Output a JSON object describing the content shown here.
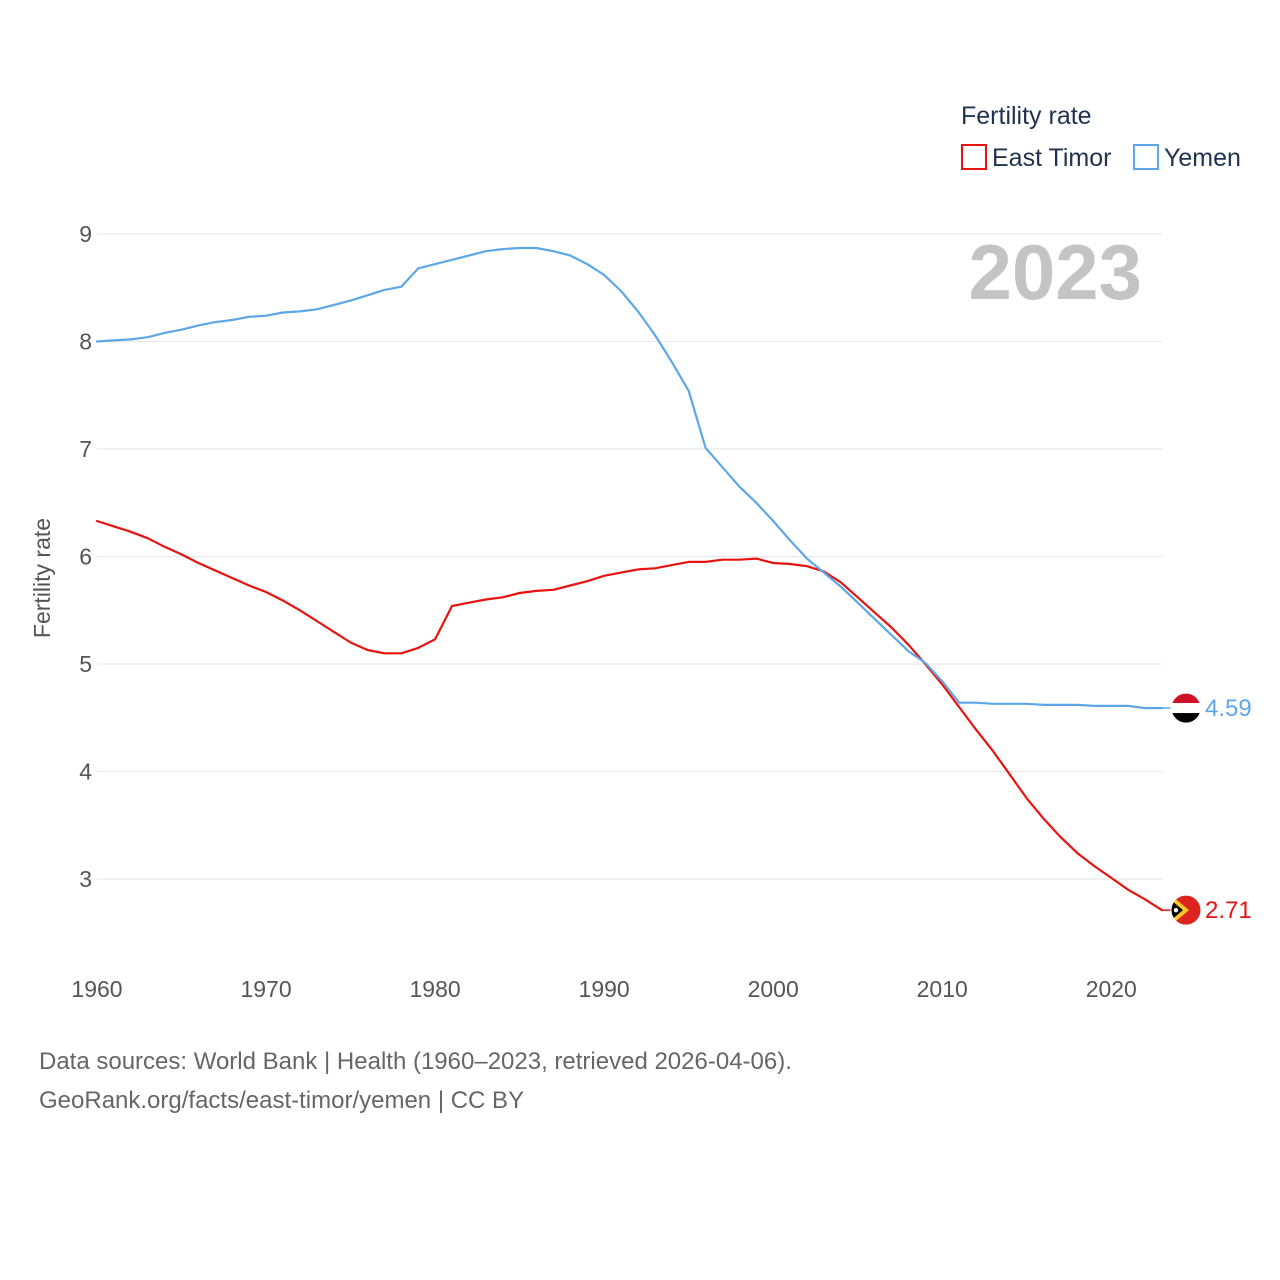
{
  "chart_data": {
    "type": "line",
    "ylabel": "Fertility rate",
    "xlabel": "",
    "xlim": [
      1960,
      2023
    ],
    "ylim": [
      2.4,
      9.2
    ],
    "x_ticks": [
      1960,
      1970,
      1980,
      1990,
      2000,
      2010,
      2020
    ],
    "y_ticks": [
      3,
      4,
      5,
      6,
      7,
      8,
      9
    ],
    "grid": true,
    "legend": {
      "title": "Fertility rate",
      "placement": "top-right",
      "entries": [
        "East Timor",
        "Yemen"
      ]
    },
    "year_display": "2023",
    "series": [
      {
        "name": "East Timor",
        "color": "#e8130f",
        "end_label": "2.71",
        "flag": "east-timor-flag",
        "x": [
          1960,
          1961,
          1962,
          1963,
          1964,
          1965,
          1966,
          1967,
          1968,
          1969,
          1970,
          1971,
          1972,
          1973,
          1974,
          1975,
          1976,
          1977,
          1978,
          1979,
          1980,
          1981,
          1982,
          1983,
          1984,
          1985,
          1986,
          1987,
          1988,
          1989,
          1990,
          1991,
          1992,
          1993,
          1994,
          1995,
          1996,
          1997,
          1998,
          1999,
          2000,
          2001,
          2002,
          2003,
          2004,
          2005,
          2006,
          2007,
          2008,
          2009,
          2010,
          2011,
          2012,
          2013,
          2014,
          2015,
          2016,
          2017,
          2018,
          2019,
          2020,
          2021,
          2022,
          2023
        ],
        "values": [
          6.33,
          6.28,
          6.23,
          6.17,
          6.09,
          6.02,
          5.94,
          5.87,
          5.8,
          5.73,
          5.67,
          5.59,
          5.5,
          5.4,
          5.3,
          5.2,
          5.13,
          5.1,
          5.1,
          5.15,
          5.23,
          5.54,
          5.57,
          5.6,
          5.62,
          5.66,
          5.68,
          5.69,
          5.73,
          5.77,
          5.82,
          5.85,
          5.88,
          5.89,
          5.92,
          5.95,
          5.95,
          5.97,
          5.97,
          5.98,
          5.94,
          5.93,
          5.91,
          5.86,
          5.76,
          5.62,
          5.48,
          5.34,
          5.18,
          5.0,
          4.81,
          4.6,
          4.39,
          4.19,
          3.97,
          3.75,
          3.56,
          3.39,
          3.24,
          3.12,
          3.01,
          2.9,
          2.81,
          2.71
        ]
      },
      {
        "name": "Yemen",
        "color": "#5ea7e6",
        "end_label": "4.59",
        "flag": "yemen-flag",
        "x": [
          1960,
          1961,
          1962,
          1963,
          1964,
          1965,
          1966,
          1967,
          1968,
          1969,
          1970,
          1971,
          1972,
          1973,
          1974,
          1975,
          1976,
          1977,
          1978,
          1979,
          1980,
          1981,
          1982,
          1983,
          1984,
          1985,
          1986,
          1987,
          1988,
          1989,
          1990,
          1991,
          1992,
          1993,
          1994,
          1995,
          1996,
          1997,
          1998,
          1999,
          2000,
          2001,
          2002,
          2003,
          2004,
          2005,
          2006,
          2007,
          2008,
          2009,
          2010,
          2011,
          2012,
          2013,
          2014,
          2015,
          2016,
          2017,
          2018,
          2019,
          2020,
          2021,
          2022,
          2023
        ],
        "values": [
          8.0,
          8.01,
          8.02,
          8.04,
          8.08,
          8.11,
          8.15,
          8.18,
          8.2,
          8.23,
          8.24,
          8.27,
          8.28,
          8.3,
          8.34,
          8.38,
          8.43,
          8.48,
          8.51,
          8.68,
          8.72,
          8.76,
          8.8,
          8.84,
          8.86,
          8.87,
          8.87,
          8.84,
          8.8,
          8.72,
          8.62,
          8.47,
          8.28,
          8.06,
          7.81,
          7.54,
          7.01,
          6.83,
          6.65,
          6.5,
          6.33,
          6.15,
          5.98,
          5.85,
          5.72,
          5.57,
          5.42,
          5.27,
          5.12,
          5.01,
          4.84,
          4.64,
          4.64,
          4.63,
          4.63,
          4.63,
          4.62,
          4.62,
          4.62,
          4.61,
          4.61,
          4.61,
          4.59,
          4.59
        ]
      }
    ]
  },
  "footer": {
    "line1": "Data sources: World Bank | Health (1960–2023, retrieved 2026-04-06).",
    "line2": "GeoRank.org/facts/east-timor/yemen | CC BY"
  }
}
